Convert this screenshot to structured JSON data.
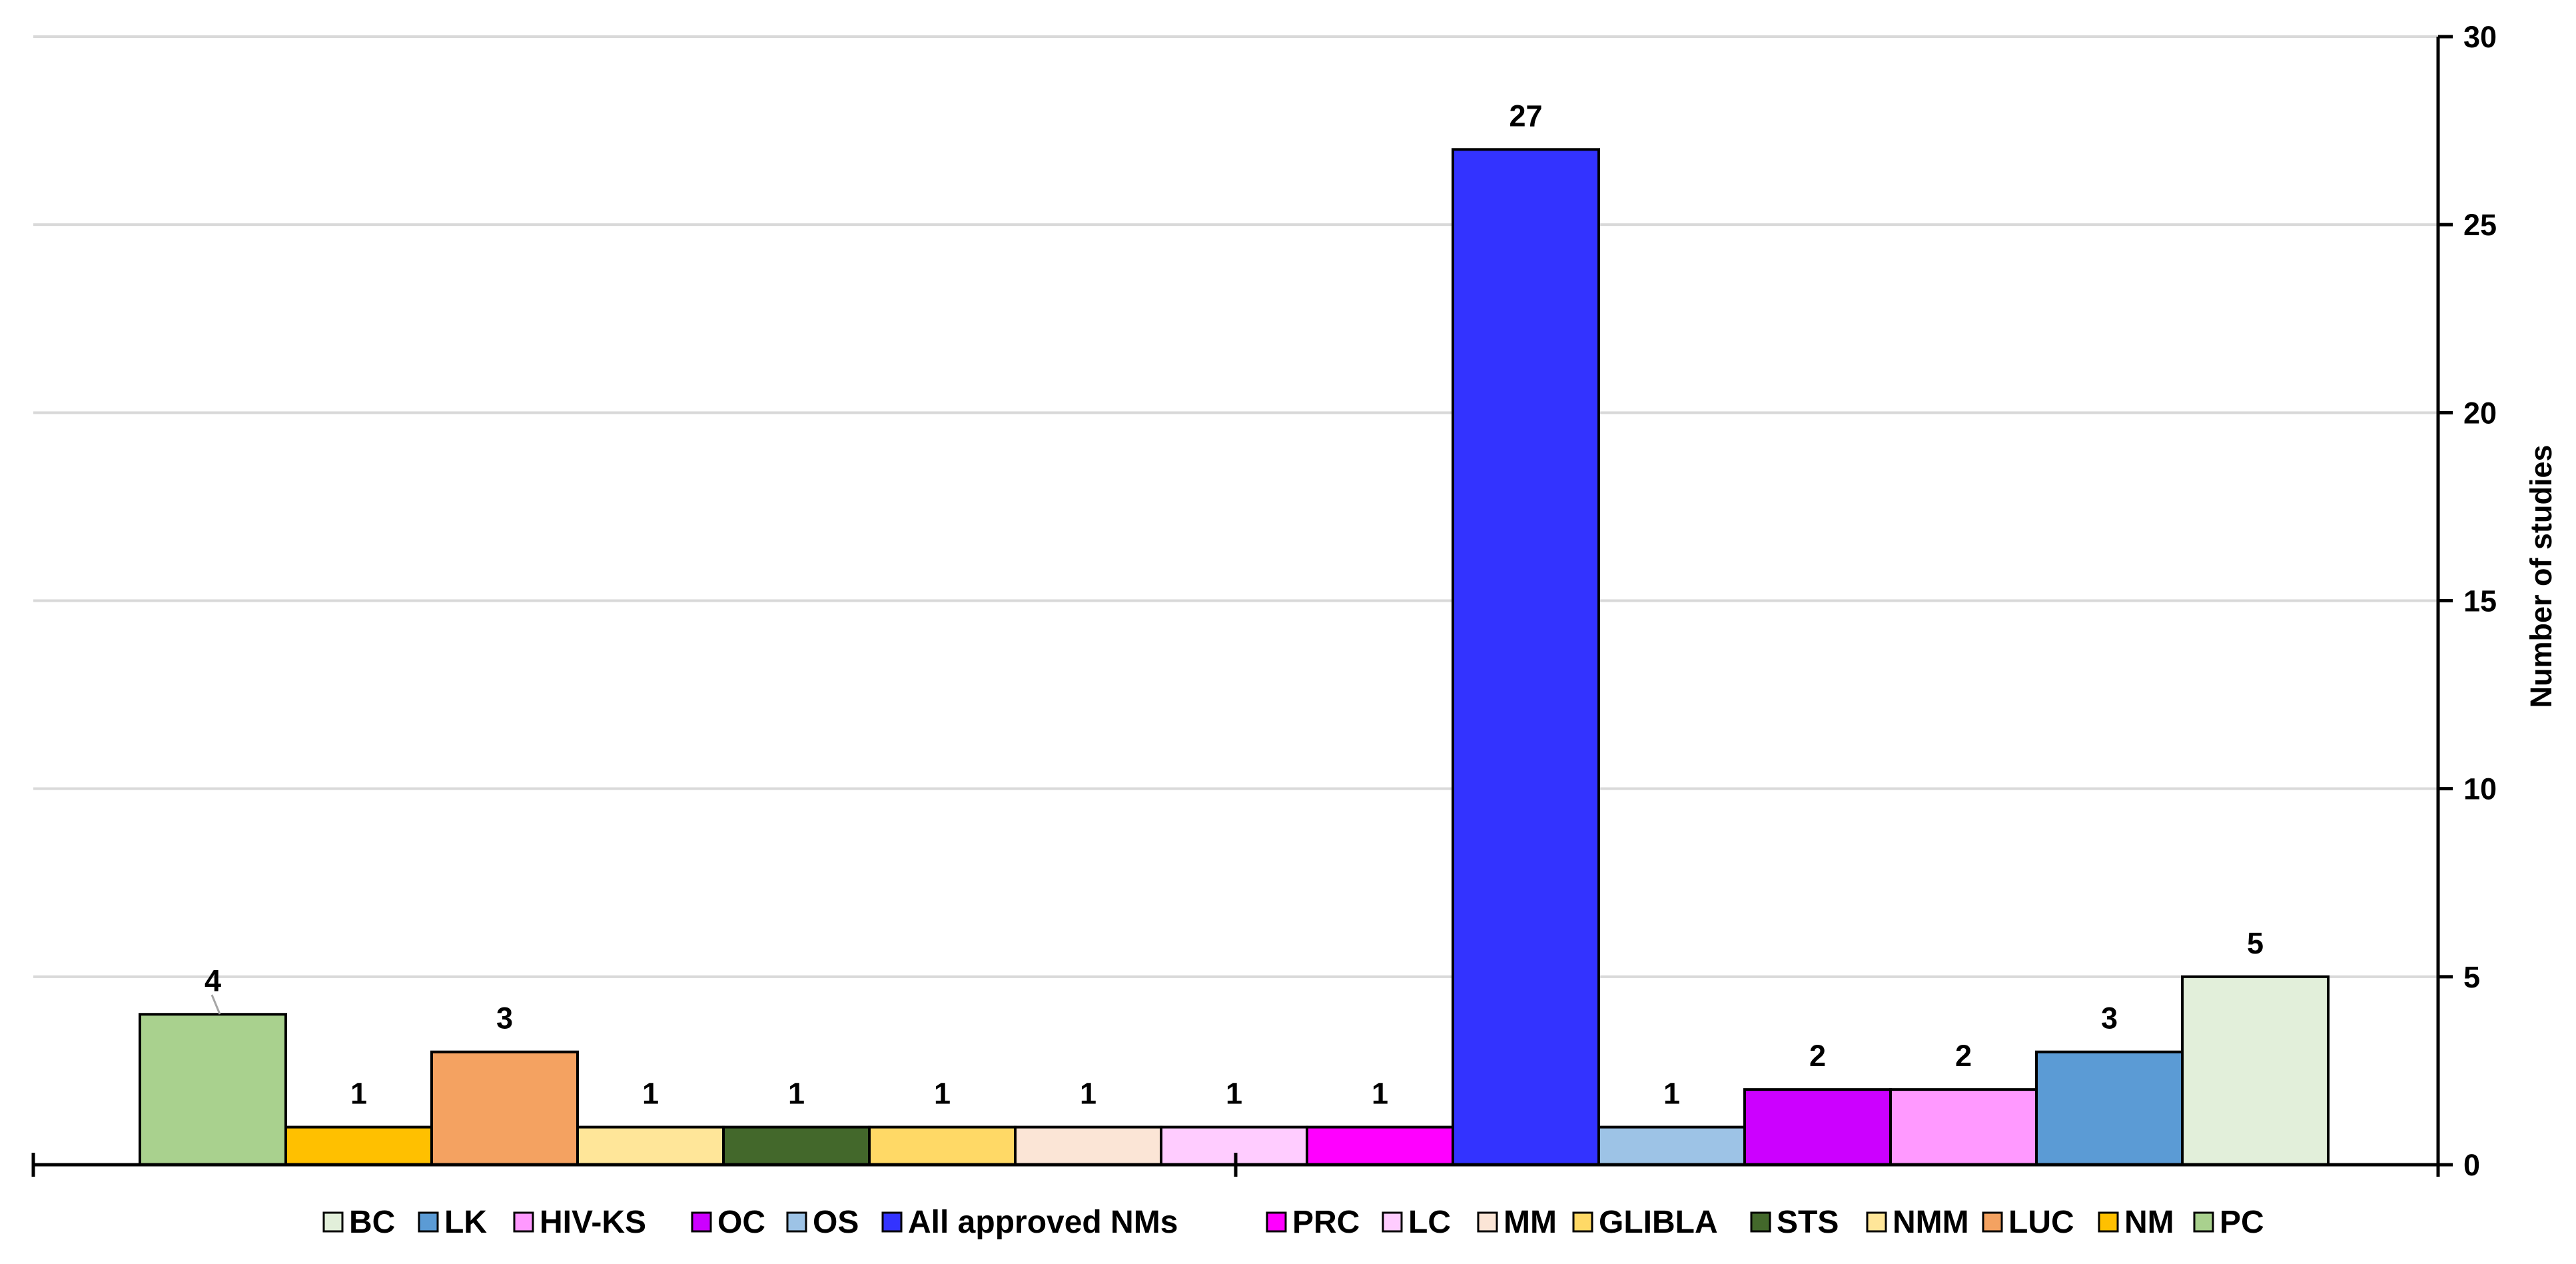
{
  "chart_data": {
    "type": "bar",
    "title": "",
    "xlabel": "",
    "ylabel": "Number of studies",
    "ylim": [
      0,
      30
    ],
    "yticks": [
      0,
      5,
      10,
      15,
      20,
      25,
      30
    ],
    "y_axis_side": "right",
    "grid": true,
    "legend_position": "bottom",
    "categories": [
      "PC",
      "NM",
      "LUC",
      "NMM",
      "STS",
      "GLIBLA",
      "MM",
      "LC",
      "PRC",
      "All approved NMs",
      "OS",
      "OC",
      "HIV-KS",
      "LK",
      "BC"
    ],
    "values": [
      4,
      1,
      3,
      1,
      1,
      1,
      1,
      1,
      1,
      27,
      1,
      2,
      2,
      3,
      5
    ],
    "colors": [
      "#A9D18E",
      "#FFC000",
      "#F4A261",
      "#FFE699",
      "#43682B",
      "#FFD966",
      "#FBE5D6",
      "#FFCCFF",
      "#FF00FF",
      "#3333FF",
      "#9DC3E6",
      "#CC00FF",
      "#FF99FF",
      "#5B9BD5",
      "#E2EFDA"
    ],
    "legend_order": [
      "BC",
      "LK",
      "HIV-KS",
      "OC",
      "OS",
      "All approved NMs",
      "PRC",
      "LC",
      "MM",
      "GLIBLA",
      "STS",
      "NMM",
      "LUC",
      "NM",
      "PC"
    ]
  }
}
